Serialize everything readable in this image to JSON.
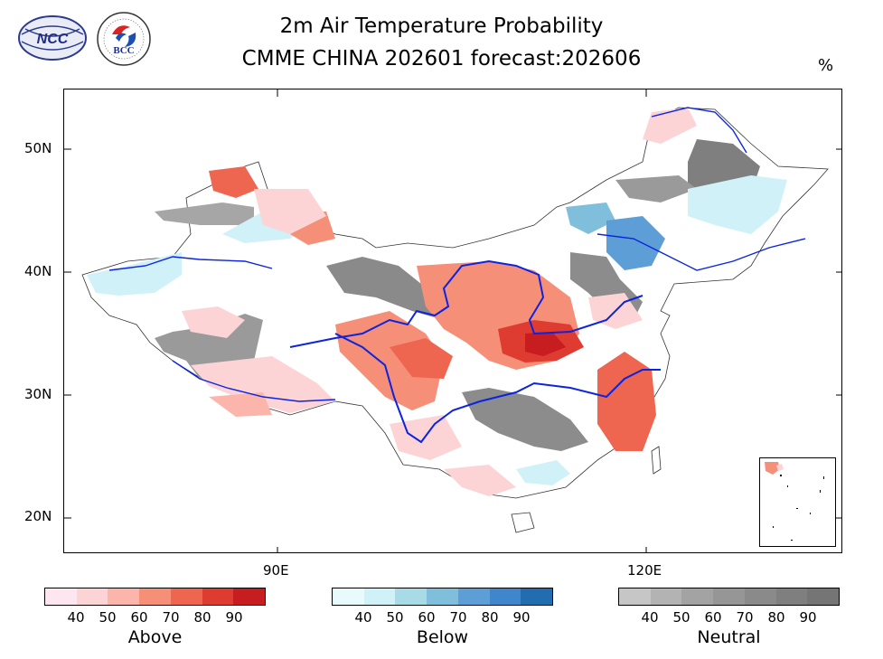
{
  "title_line1": "2m Air Temperature Probability",
  "title_line2": "CMME CHINA 202601 forecast:202606",
  "unit": "%",
  "logos": {
    "ncc_text": "NCC",
    "bcc_text": "BCC"
  },
  "y_axis_labels": [
    "50N",
    "40N",
    "30N",
    "20N"
  ],
  "x_axis_labels": [
    "90E",
    "120E"
  ],
  "legends": [
    {
      "name": "Above",
      "ticks": [
        "40",
        "50",
        "60",
        "70",
        "80",
        "90"
      ],
      "colors": [
        "#fde6f0",
        "#fcd4d6",
        "#fbb5aa",
        "#f68f78",
        "#ee6650",
        "#de3b31",
        "#c71d21"
      ]
    },
    {
      "name": "Below",
      "ticks": [
        "40",
        "50",
        "60",
        "70",
        "80",
        "90"
      ],
      "colors": [
        "#e9fafd",
        "#d1f1f9",
        "#a8dbe6",
        "#7fbfdb",
        "#5e9ed6",
        "#3f86cc",
        "#226cb0"
      ]
    },
    {
      "name": "Neutral",
      "ticks": [
        "40",
        "50",
        "60",
        "70",
        "80",
        "90"
      ],
      "colors": [
        "#c6c6c6",
        "#b3b3b3",
        "#a3a3a3",
        "#969696",
        "#8a8a8a",
        "#7f7f7f",
        "#757575"
      ]
    }
  ]
}
